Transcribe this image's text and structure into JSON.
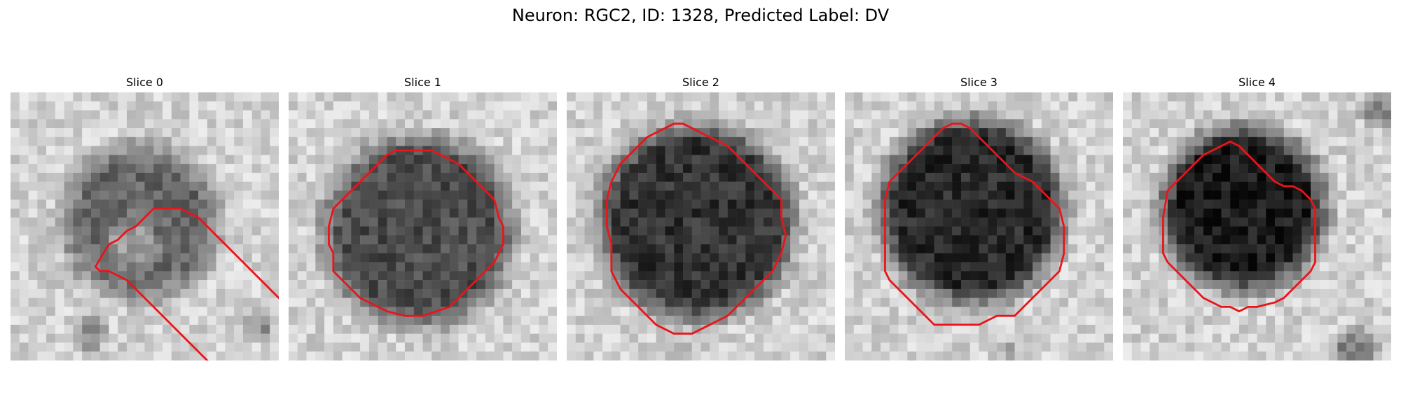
{
  "figure": {
    "title": "Neuron: RGC2, ID: 1328, Predicted Label: DV"
  },
  "contour_color": "#e8151b",
  "panels": [
    {
      "title": "Slice 0",
      "contour": [
        [
          9.5,
          19.5
        ],
        [
          11,
          17
        ],
        [
          12,
          16.5
        ],
        [
          13,
          15.5
        ],
        [
          14,
          15
        ],
        [
          15,
          14
        ],
        [
          16,
          13
        ],
        [
          19,
          13
        ],
        [
          20,
          13.5
        ],
        [
          21,
          14
        ],
        [
          22,
          15
        ],
        [
          23,
          16
        ],
        [
          24,
          17
        ],
        [
          25,
          18
        ],
        [
          26,
          19
        ],
        [
          27,
          20
        ],
        [
          28,
          21
        ],
        [
          29,
          22
        ],
        [
          30,
          23
        ],
        [
          31,
          24
        ],
        [
          32,
          25
        ],
        [
          33,
          26
        ],
        [
          34,
          27
        ],
        [
          35,
          28
        ],
        [
          36,
          29
        ],
        [
          36,
          31
        ],
        [
          35,
          32
        ],
        [
          34,
          33
        ],
        [
          33,
          34
        ],
        [
          31,
          34
        ],
        [
          30,
          35
        ],
        [
          28,
          35
        ],
        [
          27,
          34
        ],
        [
          26,
          34
        ],
        [
          25,
          33
        ],
        [
          24,
          32
        ],
        [
          23,
          31
        ],
        [
          22,
          30
        ],
        [
          21,
          29
        ],
        [
          20,
          28
        ],
        [
          19,
          27
        ],
        [
          18,
          26
        ],
        [
          17,
          25
        ],
        [
          16,
          24
        ],
        [
          15,
          23
        ],
        [
          14,
          22
        ],
        [
          13,
          21
        ],
        [
          12,
          20.5
        ],
        [
          11,
          20
        ],
        [
          10,
          20
        ]
      ]
    },
    {
      "title": "Slice 1",
      "contour": [
        [
          5,
          13
        ],
        [
          6,
          12
        ],
        [
          7,
          11
        ],
        [
          8,
          10
        ],
        [
          9,
          9
        ],
        [
          10,
          8
        ],
        [
          11,
          7
        ],
        [
          12,
          6.5
        ],
        [
          16,
          6.5
        ],
        [
          17,
          7
        ],
        [
          18,
          7.5
        ],
        [
          19,
          8
        ],
        [
          20,
          9
        ],
        [
          21,
          10
        ],
        [
          22,
          11
        ],
        [
          23,
          12
        ],
        [
          23.5,
          14
        ],
        [
          24,
          15
        ],
        [
          24,
          17
        ],
        [
          23.5,
          18
        ],
        [
          23,
          19
        ],
        [
          22,
          20
        ],
        [
          21,
          21
        ],
        [
          20,
          22
        ],
        [
          19,
          23
        ],
        [
          18,
          24
        ],
        [
          15,
          25
        ],
        [
          13,
          25
        ],
        [
          11,
          24.5
        ],
        [
          10,
          24
        ],
        [
          9,
          23.5
        ],
        [
          8,
          23
        ],
        [
          7,
          22
        ],
        [
          6,
          21
        ],
        [
          5,
          20
        ],
        [
          5,
          18
        ],
        [
          4.5,
          17
        ],
        [
          4.5,
          15
        ]
      ]
    },
    {
      "title": "Slice 2",
      "contour": [
        [
          5,
          10
        ],
        [
          6,
          8
        ],
        [
          7,
          7
        ],
        [
          8,
          6
        ],
        [
          9,
          5
        ],
        [
          10,
          4.5
        ],
        [
          11,
          4
        ],
        [
          12,
          3.5
        ],
        [
          13,
          3.5
        ],
        [
          14,
          4
        ],
        [
          15,
          4.5
        ],
        [
          16,
          5
        ],
        [
          17,
          5.5
        ],
        [
          18,
          6
        ],
        [
          19,
          7
        ],
        [
          20,
          8
        ],
        [
          21,
          9
        ],
        [
          22,
          10
        ],
        [
          23,
          11
        ],
        [
          24,
          12
        ],
        [
          24,
          14
        ],
        [
          24.5,
          16
        ],
        [
          24,
          18
        ],
        [
          23,
          20
        ],
        [
          22,
          21
        ],
        [
          21,
          22
        ],
        [
          20,
          23
        ],
        [
          19,
          24
        ],
        [
          18,
          25
        ],
        [
          17,
          25.5
        ],
        [
          16,
          26
        ],
        [
          15,
          26.5
        ],
        [
          14,
          27
        ],
        [
          12,
          27
        ],
        [
          11,
          26.5
        ],
        [
          10,
          26
        ],
        [
          9,
          25
        ],
        [
          8,
          24
        ],
        [
          7,
          23
        ],
        [
          6,
          22
        ],
        [
          5.5,
          21
        ],
        [
          5,
          20
        ],
        [
          5,
          17
        ],
        [
          4.5,
          15
        ],
        [
          4.5,
          12
        ]
      ]
    },
    {
      "title": "Slice 3",
      "contour": [
        [
          5,
          10
        ],
        [
          6,
          9
        ],
        [
          7,
          8
        ],
        [
          8,
          7
        ],
        [
          9,
          6
        ],
        [
          10,
          5
        ],
        [
          11,
          4
        ],
        [
          12,
          3.5
        ],
        [
          13,
          3.5
        ],
        [
          14,
          4
        ],
        [
          15,
          5
        ],
        [
          16,
          6
        ],
        [
          17,
          7
        ],
        [
          18,
          8
        ],
        [
          19,
          9
        ],
        [
          20,
          9.5
        ],
        [
          21,
          10
        ],
        [
          22,
          11
        ],
        [
          23,
          12
        ],
        [
          24,
          13
        ],
        [
          24.5,
          15
        ],
        [
          24.5,
          18
        ],
        [
          24,
          20
        ],
        [
          23,
          21
        ],
        [
          22,
          22
        ],
        [
          21,
          23
        ],
        [
          20,
          24
        ],
        [
          19,
          25
        ],
        [
          17,
          25
        ],
        [
          15,
          26
        ],
        [
          12,
          26
        ],
        [
          10,
          26
        ],
        [
          9,
          25
        ],
        [
          8,
          24
        ],
        [
          7,
          23
        ],
        [
          6,
          22
        ],
        [
          5,
          21
        ],
        [
          4.5,
          20
        ],
        [
          4.5,
          17
        ],
        [
          4.5,
          12
        ]
      ]
    },
    {
      "title": "Slice 4",
      "contour": [
        [
          5,
          11
        ],
        [
          6,
          10
        ],
        [
          7,
          9
        ],
        [
          8,
          8
        ],
        [
          9,
          7
        ],
        [
          10,
          6.5
        ],
        [
          11,
          6
        ],
        [
          12,
          5.5
        ],
        [
          13,
          6
        ],
        [
          14,
          7
        ],
        [
          15,
          8
        ],
        [
          16,
          9
        ],
        [
          17,
          10
        ],
        [
          18,
          10.5
        ],
        [
          19,
          10.5
        ],
        [
          20,
          11
        ],
        [
          21,
          12
        ],
        [
          21.5,
          13
        ],
        [
          21.5,
          19
        ],
        [
          21,
          20
        ],
        [
          20,
          21
        ],
        [
          19,
          22
        ],
        [
          18,
          23
        ],
        [
          17,
          23.5
        ],
        [
          15,
          24
        ],
        [
          14,
          24
        ],
        [
          13,
          24.5
        ],
        [
          12,
          24
        ],
        [
          11,
          24
        ],
        [
          10,
          23.5
        ],
        [
          9,
          23
        ],
        [
          8,
          22
        ],
        [
          7,
          21
        ],
        [
          6,
          20
        ],
        [
          5,
          19
        ],
        [
          4.5,
          18
        ],
        [
          4.5,
          14
        ]
      ]
    }
  ]
}
